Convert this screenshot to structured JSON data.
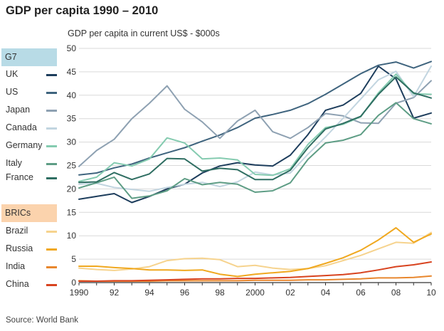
{
  "page": {
    "title": "GDP per capita 1990 – 2010",
    "source": "Source: World Bank"
  },
  "legend": {
    "group1_title": "G7",
    "group2_title": "BRICs"
  },
  "chart_data": {
    "type": "line",
    "title": "GDP per capita 1990 – 2010",
    "ylabel": "GDP per capita in current US$ - $000s",
    "xlabel": "",
    "x": [
      1990,
      1991,
      1992,
      1993,
      1994,
      1995,
      1996,
      1997,
      1998,
      1999,
      2000,
      2001,
      2002,
      2003,
      2004,
      2005,
      2006,
      2007,
      2008,
      2009,
      2010
    ],
    "xticks": [
      1990,
      1992,
      1994,
      1996,
      1998,
      2000,
      2002,
      2004,
      2006,
      2008,
      2010
    ],
    "xtick_labels": [
      "1990",
      "92",
      "94",
      "96",
      "98",
      "2000",
      "02",
      "04",
      "06",
      "08",
      "10"
    ],
    "ylim": [
      0,
      50
    ],
    "yticks": [
      0,
      5,
      10,
      15,
      20,
      25,
      30,
      35,
      40,
      45,
      50
    ],
    "ytick_labels": [
      "0",
      "5",
      "10",
      "15",
      "20",
      "25",
      "30",
      "35",
      "40",
      "45",
      "50"
    ],
    "grid": "horizontal",
    "series": [
      {
        "name": "UK",
        "group": "G7",
        "color": "#1d3d5c",
        "values": [
          17.8,
          18.4,
          19.0,
          17.1,
          18.4,
          20.0,
          21.0,
          23.4,
          24.9,
          25.6,
          25.1,
          24.9,
          27.2,
          31.6,
          36.8,
          37.9,
          40.4,
          46.2,
          43.5,
          35.1,
          36.2
        ]
      },
      {
        "name": "US",
        "group": "G7",
        "color": "#3f647e",
        "values": [
          23.0,
          23.4,
          24.5,
          25.3,
          26.6,
          27.7,
          28.8,
          30.2,
          31.5,
          33.1,
          35.1,
          35.9,
          36.8,
          38.2,
          40.2,
          42.4,
          44.6,
          46.4,
          47.1,
          45.8,
          47.2
        ]
      },
      {
        "name": "Japan",
        "group": "G7",
        "color": "#8ea1b2",
        "values": [
          24.8,
          28.2,
          30.6,
          35.0,
          38.3,
          42.0,
          37.0,
          34.3,
          30.8,
          34.5,
          36.8,
          32.2,
          30.8,
          33.1,
          36.1,
          35.6,
          34.1,
          34.0,
          38.3,
          39.5,
          43.1
        ]
      },
      {
        "name": "Canada",
        "group": "G7",
        "color": "#c2d5e0",
        "values": [
          21.0,
          21.2,
          20.3,
          19.9,
          19.5,
          20.3,
          21.0,
          21.4,
          20.5,
          21.5,
          23.6,
          23.0,
          23.4,
          27.4,
          31.1,
          35.1,
          39.2,
          43.3,
          45.1,
          39.7,
          46.2
        ]
      },
      {
        "name": "Germany",
        "group": "G7",
        "color": "#85cbb0",
        "values": [
          21.6,
          22.5,
          25.6,
          24.9,
          26.4,
          30.9,
          29.8,
          26.4,
          26.6,
          26.2,
          23.1,
          22.9,
          24.3,
          29.5,
          33.1,
          33.8,
          35.4,
          40.5,
          44.5,
          40.3,
          40.2
        ]
      },
      {
        "name": "Italy",
        "group": "G7",
        "color": "#5e9d85",
        "values": [
          20.2,
          21.3,
          22.5,
          18.0,
          18.5,
          19.6,
          22.2,
          20.9,
          21.4,
          21.0,
          19.3,
          19.6,
          21.3,
          26.3,
          29.8,
          30.4,
          31.6,
          35.7,
          38.4,
          35.0,
          33.9
        ]
      },
      {
        "name": "France",
        "group": "G7",
        "color": "#2f6e62",
        "values": [
          21.4,
          21.5,
          23.5,
          22.0,
          23.2,
          26.5,
          26.4,
          23.8,
          24.4,
          24.1,
          22.0,
          22.0,
          24.0,
          28.8,
          32.8,
          34.0,
          35.5,
          40.2,
          43.9,
          40.5,
          39.4
        ]
      },
      {
        "name": "Brazil",
        "group": "BRICs",
        "color": "#f6d38e",
        "values": [
          3.1,
          2.8,
          2.6,
          2.9,
          3.4,
          4.7,
          5.1,
          5.2,
          4.9,
          3.4,
          3.7,
          3.1,
          2.8,
          3.0,
          3.6,
          4.7,
          5.8,
          7.2,
          8.6,
          8.4,
          10.7
        ]
      },
      {
        "name": "Russia",
        "group": "BRICs",
        "color": "#f0a81f",
        "values": [
          3.5,
          3.5,
          3.2,
          3.0,
          2.7,
          2.7,
          2.6,
          2.7,
          1.8,
          1.3,
          1.8,
          2.1,
          2.4,
          3.0,
          4.1,
          5.3,
          6.9,
          9.1,
          11.7,
          8.6,
          10.4
        ]
      },
      {
        "name": "India",
        "group": "BRICs",
        "color": "#e8872e",
        "values": [
          0.4,
          0.3,
          0.3,
          0.3,
          0.3,
          0.4,
          0.4,
          0.4,
          0.4,
          0.4,
          0.5,
          0.5,
          0.5,
          0.6,
          0.6,
          0.7,
          0.8,
          1.0,
          1.0,
          1.1,
          1.4
        ]
      },
      {
        "name": "China",
        "group": "BRICs",
        "color": "#d8431f",
        "values": [
          0.3,
          0.3,
          0.4,
          0.4,
          0.5,
          0.6,
          0.7,
          0.8,
          0.8,
          0.9,
          0.9,
          1.0,
          1.1,
          1.3,
          1.5,
          1.7,
          2.1,
          2.7,
          3.4,
          3.8,
          4.4
        ]
      }
    ]
  }
}
